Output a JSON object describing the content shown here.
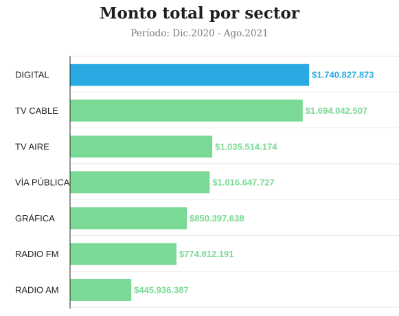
{
  "title": "Monto total por sector",
  "subtitle": "Período: Dic.2020 - Ago.2021",
  "colors": {
    "highlight": "#2aaae3",
    "bar": "#7ad994",
    "axis": "#222222",
    "grid": "#e8e8e8"
  },
  "chart_data": {
    "type": "bar",
    "orientation": "horizontal",
    "title": "Monto total por sector",
    "subtitle": "Período: Dic.2020 - Ago.2021",
    "categories": [
      "DIGITAL",
      "TV CABLE",
      "TV AIRE",
      "VÍA PÚBLICA",
      "GRÁFICA",
      "RADIO FM",
      "RADIO AM"
    ],
    "values": [
      1740827873,
      1694042507,
      1035514174,
      1016647727,
      850397638,
      774812191,
      445936387
    ],
    "value_labels": [
      "$1.740.827.873",
      "$1.694.042.507",
      "$1.035.514.174",
      "$1.016.647.727",
      "$850.397.638",
      "$774.812.191",
      "$445.936.387"
    ],
    "highlight": "DIGITAL",
    "xlim": [
      0,
      2000000000
    ],
    "grid": true
  }
}
